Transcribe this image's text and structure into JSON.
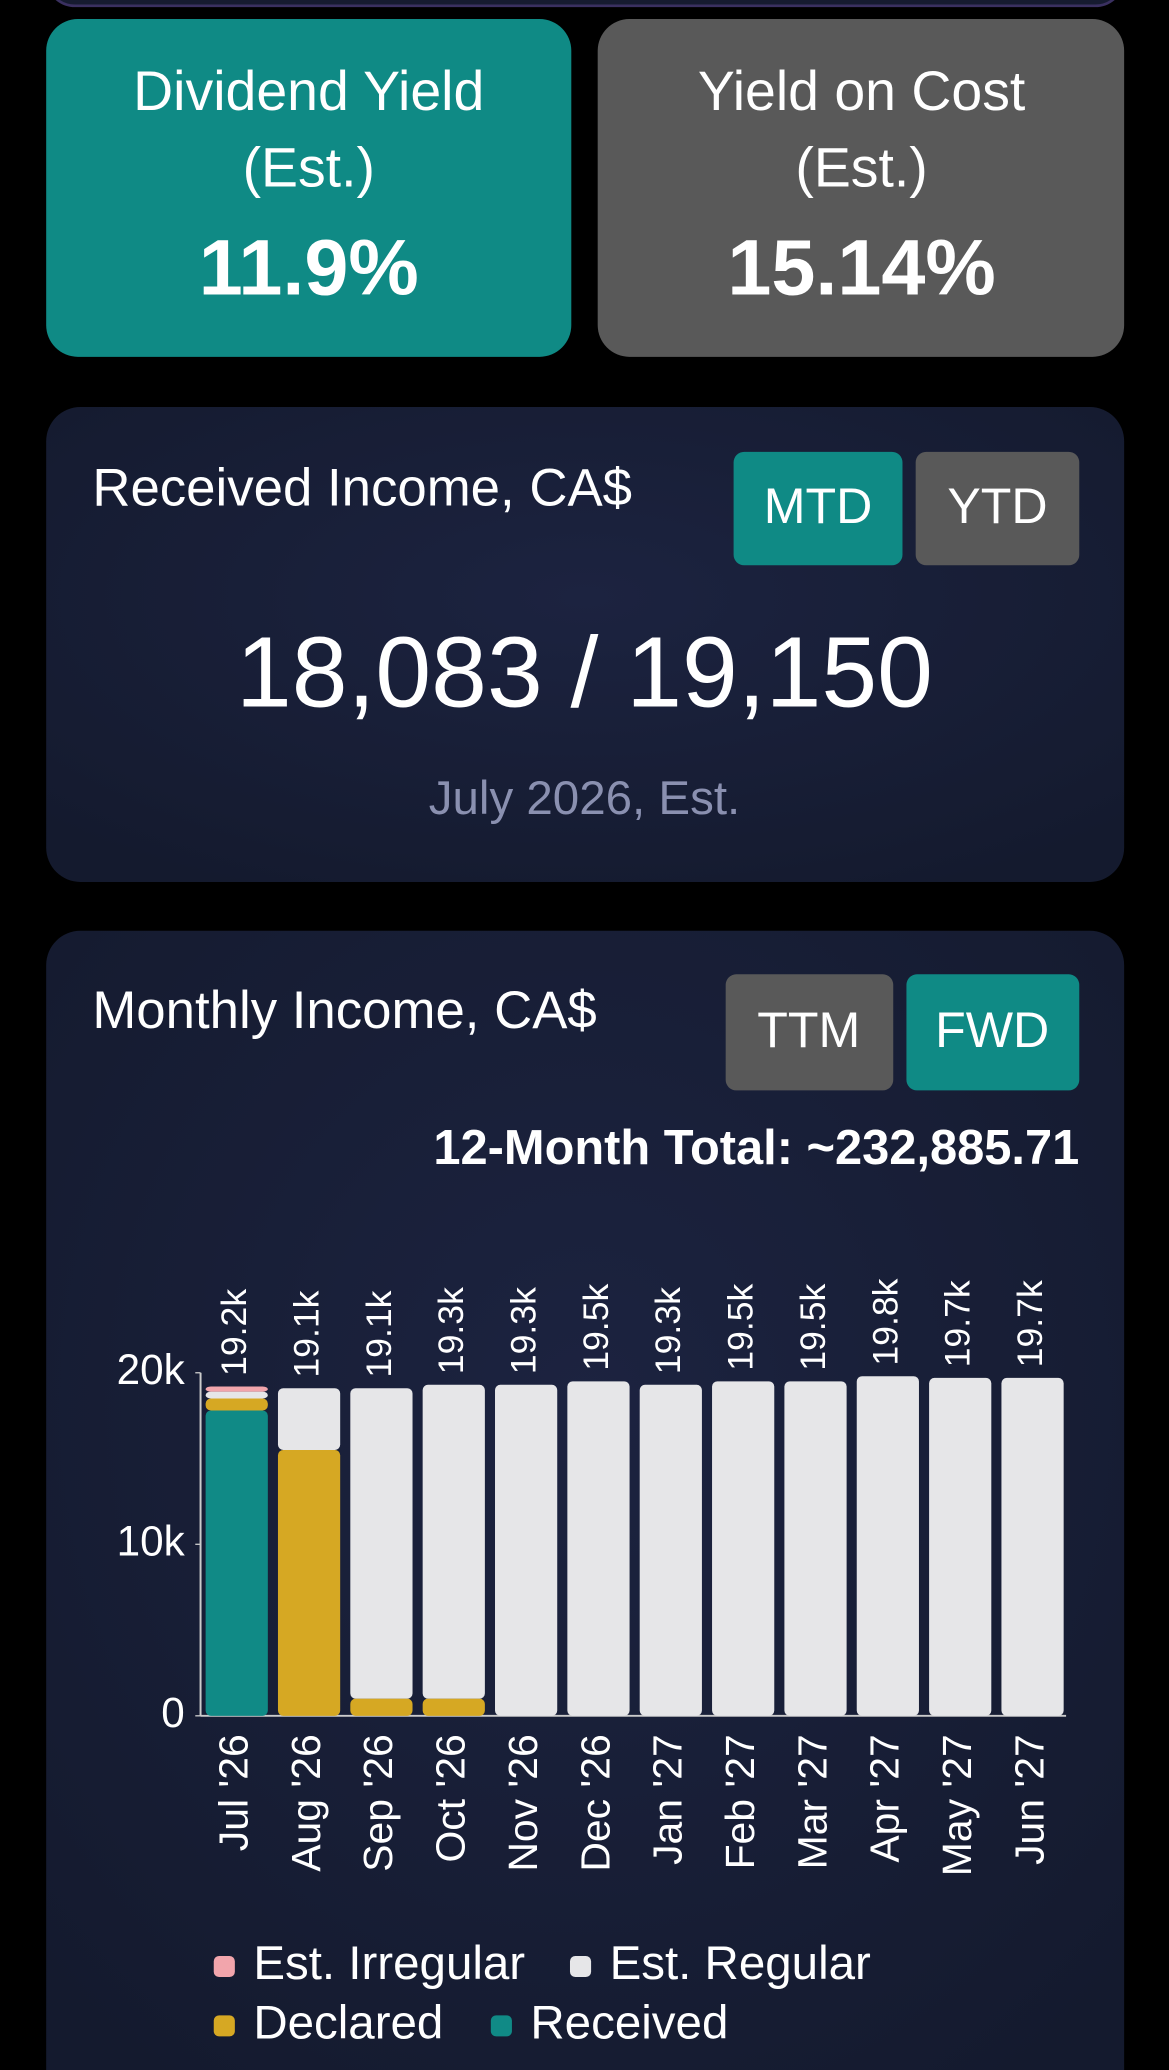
{
  "yield_cards": [
    {
      "title": "Dividend Yield",
      "subtitle": "(Est.)",
      "value": "11.9%"
    },
    {
      "title": "Yield on Cost",
      "subtitle": "(Est.)",
      "value": "15.14%"
    }
  ],
  "received_income": {
    "title": "Received Income, CA$",
    "buttons": [
      "MTD",
      "YTD"
    ],
    "amount": "18,083 / 19,150",
    "period": "July 2026, Est."
  },
  "chart_data": {
    "type": "stacked-bar",
    "title": "Monthly Income, CA$",
    "buttons": [
      "TTM",
      "FWD"
    ],
    "subtitle": "12-Month Total: ~232,885.71",
    "categories": [
      "Jul '26",
      "Aug '26",
      "Sep '26",
      "Oct '26",
      "Nov '26",
      "Dec '26",
      "Jan '27",
      "Feb '27",
      "Mar '27",
      "Apr '27",
      "May '27",
      "Jun '27"
    ],
    "series": [
      {
        "name": "Est. Irregular",
        "color": "#f2a5ac",
        "values": [
          300,
          0,
          0,
          0,
          0,
          0,
          0,
          0,
          0,
          0,
          0,
          0
        ]
      },
      {
        "name": "Est. Regular",
        "color": "#e6e6e8",
        "values": [
          400,
          3600,
          18100,
          18300,
          19300,
          19500,
          19300,
          19500,
          19500,
          19800,
          19700,
          19700
        ]
      },
      {
        "name": "Declared",
        "color": "#d6a823",
        "values": [
          700,
          15500,
          1000,
          1000,
          0,
          0,
          0,
          0,
          0,
          0,
          0,
          0
        ]
      },
      {
        "name": "Received",
        "color": "#108a86",
        "values": [
          17800,
          0,
          0,
          0,
          0,
          0,
          0,
          0,
          0,
          0,
          0,
          0
        ]
      }
    ],
    "totals": {
      "values": [
        19200,
        19100,
        19100,
        19300,
        19300,
        19500,
        19300,
        19500,
        19500,
        19800,
        19700,
        19700
      ],
      "value_labels": [
        "19.2k",
        "19.1k",
        "19.1k",
        "19.3k",
        "19.3k",
        "19.5k",
        "19.3k",
        "19.5k",
        "19.5k",
        "19.8k",
        "19.7k",
        "19.7k"
      ]
    },
    "ylim": [
      0,
      20000
    ],
    "yticks": [
      0,
      {
        "value": 10000,
        "label": "10k"
      },
      {
        "value": 20000,
        "label": "20k"
      }
    ],
    "legend": "bottom"
  }
}
